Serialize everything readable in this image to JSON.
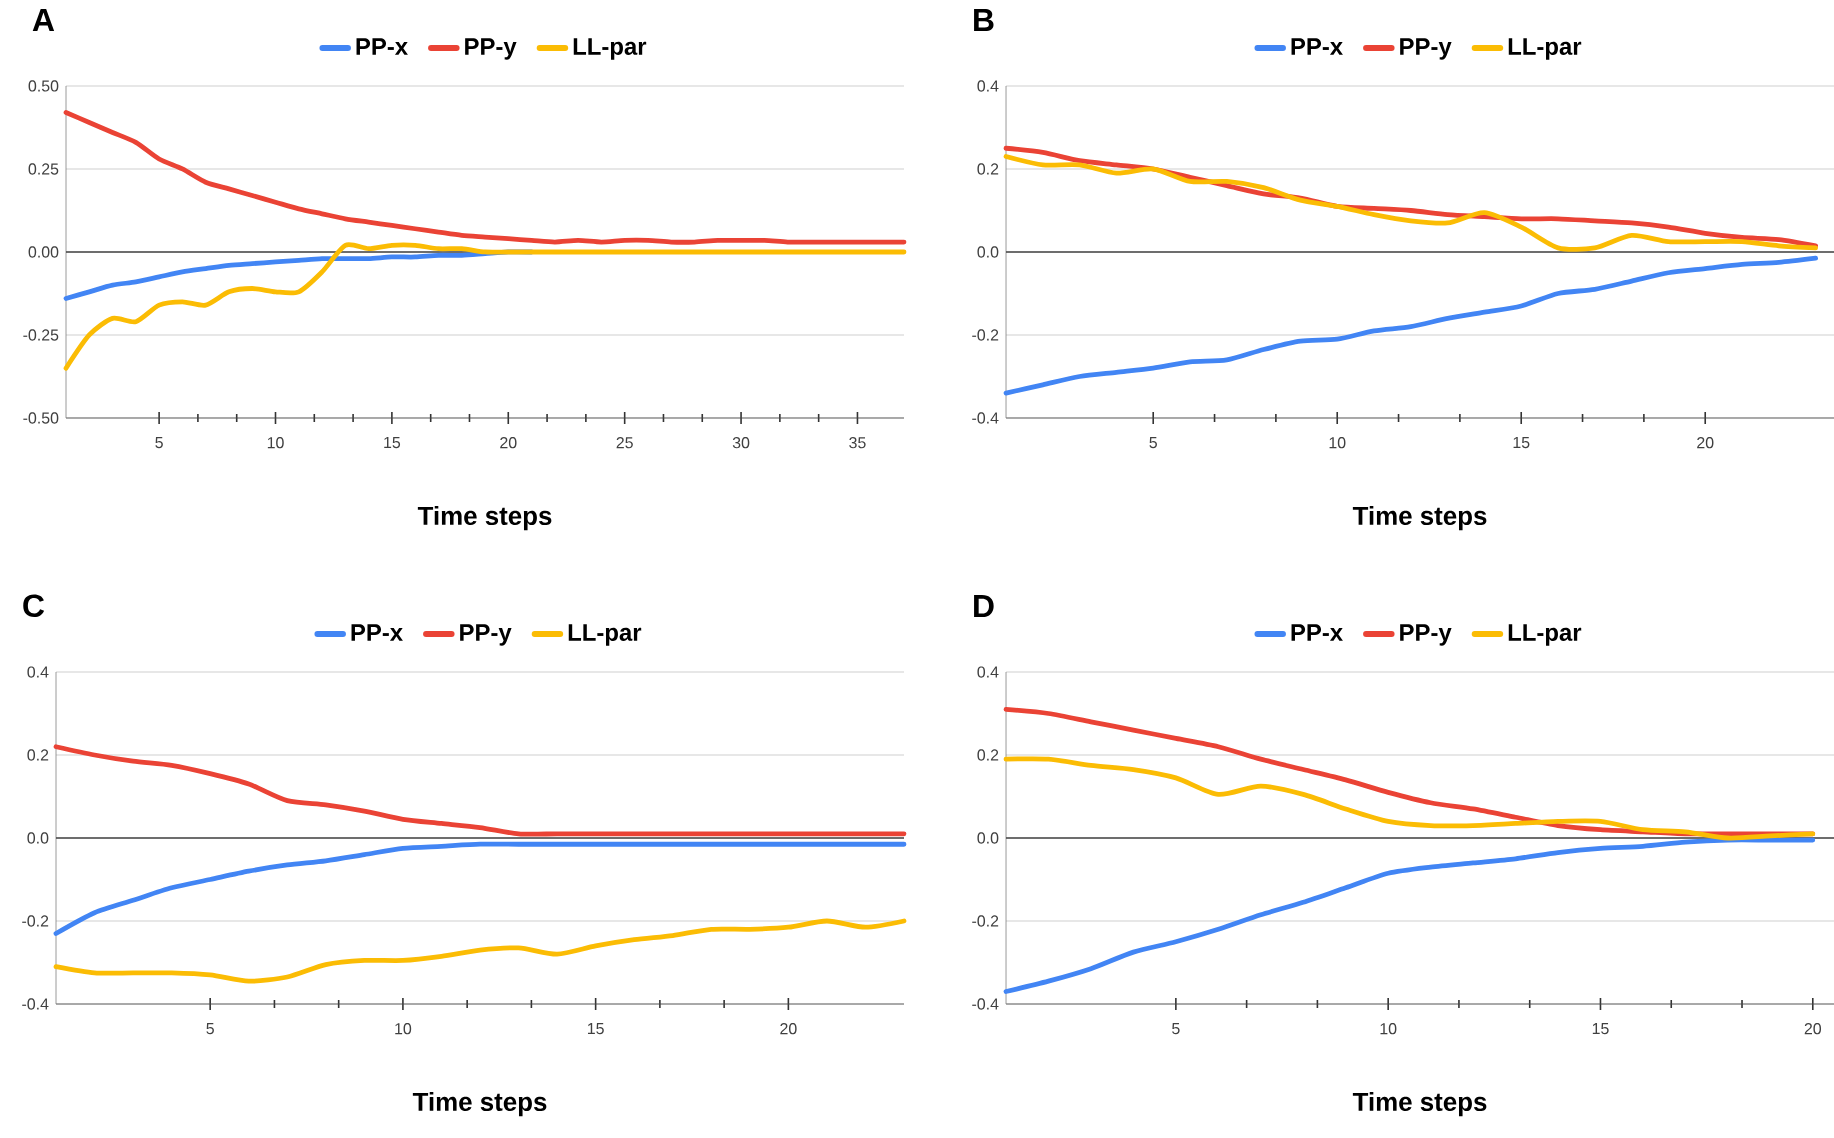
{
  "chart_data": [
    {
      "type": "line",
      "title": "A",
      "xlabel": "Time steps",
      "x": [
        1,
        2,
        3,
        4,
        5,
        6,
        7,
        8,
        9,
        10,
        11,
        12,
        13,
        14,
        15,
        16,
        17,
        18,
        19,
        20,
        21,
        22,
        23,
        24,
        25,
        26,
        27,
        28,
        29,
        30,
        31,
        32,
        33,
        34,
        35,
        36,
        37
      ],
      "series": [
        {
          "name": "PP-x",
          "color": "#4285f4",
          "values": [
            -0.14,
            -0.12,
            -0.1,
            -0.09,
            -0.075,
            -0.06,
            -0.05,
            -0.04,
            -0.035,
            -0.03,
            -0.025,
            -0.02,
            -0.02,
            -0.02,
            -0.015,
            -0.015,
            -0.01,
            -0.01,
            -0.005,
            0,
            0,
            null,
            null,
            null,
            null,
            null,
            null,
            null,
            null,
            null,
            null,
            null,
            null,
            null,
            null,
            null,
            null
          ]
        },
        {
          "name": "PP-y",
          "color": "#ea4335",
          "values": [
            0.42,
            0.39,
            0.36,
            0.33,
            0.28,
            0.25,
            0.21,
            0.19,
            0.17,
            0.15,
            0.13,
            0.115,
            0.1,
            0.09,
            0.08,
            0.07,
            0.06,
            0.05,
            0.045,
            0.04,
            0.035,
            0.03,
            0.035,
            0.03,
            0.035,
            0.035,
            0.03,
            0.03,
            0.035,
            0.035,
            0.035,
            0.03,
            0.03,
            0.03,
            0.03,
            0.03,
            0.03
          ]
        },
        {
          "name": "LL-par",
          "color": "#fbbc04",
          "values": [
            -0.35,
            -0.25,
            -0.2,
            -0.21,
            -0.16,
            -0.15,
            -0.16,
            -0.12,
            -0.11,
            -0.12,
            -0.12,
            -0.06,
            0.02,
            0.01,
            0.02,
            0.02,
            0.01,
            0.01,
            0,
            0,
            0,
            0,
            0,
            0,
            0,
            0,
            0,
            0,
            0,
            0,
            0,
            0,
            0,
            0,
            0,
            0,
            0
          ]
        }
      ],
      "xlim": [
        1,
        37
      ],
      "ylim": [
        -0.5,
        0.5
      ],
      "xticks": [
        5,
        10,
        15,
        20,
        25,
        30,
        35
      ],
      "yticks": [
        {
          "value": -0.5,
          "label": "-0.50"
        },
        {
          "value": -0.25,
          "label": "-0.25"
        },
        {
          "value": 0,
          "label": "0.00"
        },
        {
          "value": 0.25,
          "label": "0.25"
        },
        {
          "value": 0.5,
          "label": "0.50"
        }
      ],
      "grid": "y",
      "legend": "top",
      "ref_lines": [
        {
          "axis": "y",
          "value": 0,
          "color": "#444444"
        }
      ]
    },
    {
      "type": "line",
      "title": "B",
      "xlabel": "Time steps",
      "x": [
        1,
        2,
        3,
        4,
        5,
        6,
        7,
        8,
        9,
        10,
        11,
        12,
        13,
        14,
        15,
        16,
        17,
        18,
        19,
        20,
        21,
        22,
        23
      ],
      "series": [
        {
          "name": "PP-x",
          "color": "#4285f4",
          "values": [
            -0.34,
            -0.32,
            -0.3,
            -0.29,
            -0.28,
            -0.265,
            -0.26,
            -0.235,
            -0.215,
            -0.21,
            -0.19,
            -0.18,
            -0.16,
            -0.145,
            -0.13,
            -0.1,
            -0.09,
            -0.07,
            -0.05,
            -0.04,
            -0.03,
            -0.025,
            -0.015
          ]
        },
        {
          "name": "PP-y",
          "color": "#ea4335",
          "values": [
            0.25,
            0.24,
            0.22,
            0.21,
            0.2,
            0.18,
            0.16,
            0.14,
            0.13,
            0.11,
            0.105,
            0.1,
            0.09,
            0.085,
            0.08,
            0.08,
            0.075,
            0.07,
            0.06,
            0.045,
            0.035,
            0.03,
            0.015
          ]
        },
        {
          "name": "LL-par",
          "color": "#fbbc04",
          "values": [
            0.23,
            0.21,
            0.21,
            0.19,
            0.2,
            0.17,
            0.17,
            0.155,
            0.125,
            0.11,
            0.09,
            0.075,
            0.07,
            0.095,
            0.06,
            0.01,
            0.01,
            0.04,
            0.025,
            0.025,
            0.025,
            0.015,
            0.01
          ]
        }
      ],
      "xlim": [
        1,
        23.5
      ],
      "ylim": [
        -0.4,
        0.4
      ],
      "xticks": [
        5,
        10,
        15,
        20
      ],
      "yticks": [
        -0.4,
        -0.2,
        {
          "value": 0,
          "label": "0.0"
        },
        0.2,
        0.4
      ],
      "grid": "y",
      "legend": "top",
      "ref_lines": [
        {
          "axis": "y",
          "value": 0,
          "color": "#444444"
        }
      ]
    },
    {
      "type": "line",
      "title": "C",
      "xlabel": "Time steps",
      "x": [
        1,
        2,
        3,
        4,
        5,
        6,
        7,
        8,
        9,
        10,
        11,
        12,
        13,
        14,
        15,
        16,
        17,
        18,
        19,
        20,
        21,
        22,
        23
      ],
      "series": [
        {
          "name": "PP-x",
          "color": "#4285f4",
          "values": [
            -0.23,
            -0.18,
            -0.15,
            -0.12,
            -0.1,
            -0.08,
            -0.065,
            -0.055,
            -0.04,
            -0.025,
            -0.02,
            -0.015,
            -0.015,
            -0.015,
            -0.015,
            -0.015,
            -0.015,
            -0.015,
            -0.015,
            -0.015,
            -0.015,
            -0.015,
            -0.015
          ]
        },
        {
          "name": "PP-y",
          "color": "#ea4335",
          "values": [
            0.22,
            0.2,
            0.185,
            0.175,
            0.155,
            0.13,
            0.09,
            0.08,
            0.065,
            0.045,
            0.035,
            0.025,
            0.01,
            0.01,
            0.01,
            0.01,
            0.01,
            0.01,
            0.01,
            0.01,
            0.01,
            0.01,
            0.01
          ]
        },
        {
          "name": "LL-par",
          "color": "#fbbc04",
          "values": [
            -0.31,
            -0.325,
            -0.325,
            -0.325,
            -0.33,
            -0.345,
            -0.335,
            -0.305,
            -0.295,
            -0.295,
            -0.285,
            -0.27,
            -0.265,
            -0.28,
            -0.26,
            -0.245,
            -0.235,
            -0.22,
            -0.22,
            -0.215,
            -0.2,
            -0.215,
            -0.2
          ]
        }
      ],
      "xlim": [
        1,
        23
      ],
      "ylim": [
        -0.4,
        0.4
      ],
      "xticks": [
        5,
        10,
        15,
        20
      ],
      "yticks": [
        -0.4,
        -0.2,
        {
          "value": 0,
          "label": "0.0"
        },
        0.2,
        0.4
      ],
      "grid": "y",
      "legend": "top",
      "ref_lines": [
        {
          "axis": "y",
          "value": 0,
          "color": "#444444"
        }
      ]
    },
    {
      "type": "line",
      "title": "D",
      "xlabel": "Time steps",
      "x": [
        1,
        2,
        3,
        4,
        5,
        6,
        7,
        8,
        9,
        10,
        11,
        12,
        13,
        14,
        15,
        16,
        17,
        18,
        19,
        20
      ],
      "series": [
        {
          "name": "PP-x",
          "color": "#4285f4",
          "values": [
            -0.37,
            -0.345,
            -0.315,
            -0.275,
            -0.25,
            -0.22,
            -0.185,
            -0.155,
            -0.12,
            -0.085,
            -0.07,
            -0.06,
            -0.05,
            -0.035,
            -0.025,
            -0.02,
            -0.01,
            -0.005,
            -0.005,
            -0.005
          ]
        },
        {
          "name": "PP-y",
          "color": "#ea4335",
          "values": [
            0.31,
            0.3,
            0.28,
            0.26,
            0.24,
            0.22,
            0.19,
            0.165,
            0.14,
            0.11,
            0.085,
            0.07,
            0.05,
            0.03,
            0.02,
            0.015,
            0.01,
            0.01,
            0.01,
            0.01
          ]
        },
        {
          "name": "LL-par",
          "color": "#fbbc04",
          "values": [
            0.19,
            0.19,
            0.175,
            0.165,
            0.145,
            0.105,
            0.125,
            0.105,
            0.07,
            0.04,
            0.03,
            0.03,
            0.035,
            0.04,
            0.04,
            0.02,
            0.015,
            0,
            0.005,
            0.01
          ]
        }
      ],
      "xlim": [
        1,
        20.5
      ],
      "ylim": [
        -0.4,
        0.4
      ],
      "xticks": [
        5,
        10,
        15,
        20
      ],
      "yticks": [
        -0.4,
        -0.2,
        {
          "value": 0,
          "label": "0.0"
        },
        0.2,
        0.4
      ],
      "grid": "y",
      "legend": "top",
      "ref_lines": [
        {
          "axis": "y",
          "value": 0,
          "color": "#444444"
        }
      ]
    }
  ]
}
